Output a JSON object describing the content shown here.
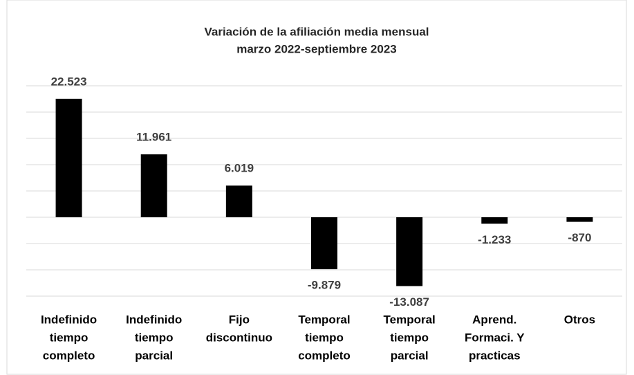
{
  "chart_data": {
    "type": "bar",
    "title": "Variación de la afiliación media mensual",
    "subtitle": "marzo 2022-septiembre 2023",
    "categories": [
      [
        "Indefinido",
        "tiempo",
        "completo"
      ],
      [
        "Indefinido",
        "tiempo",
        "parcial"
      ],
      [
        "Fijo",
        "discontinuo"
      ],
      [
        "Temporal",
        "tiempo",
        "completo"
      ],
      [
        "Temporal",
        "tiempo",
        "parcial"
      ],
      [
        "Aprend.",
        "Formaci. Y",
        "practicas"
      ],
      [
        "Otros"
      ]
    ],
    "values": [
      22523,
      11961,
      6019,
      -9879,
      -13087,
      -1233,
      -870
    ],
    "value_labels": [
      "22.523",
      "11.961",
      "6.019",
      "-9.879",
      "-13.087",
      "-1.233",
      "-870"
    ],
    "color": "#000000",
    "ylim": [
      -15000,
      25000
    ],
    "yticks": [
      -15000,
      -10000,
      -5000,
      0,
      5000,
      10000,
      15000,
      20000,
      25000
    ],
    "grid": true
  }
}
